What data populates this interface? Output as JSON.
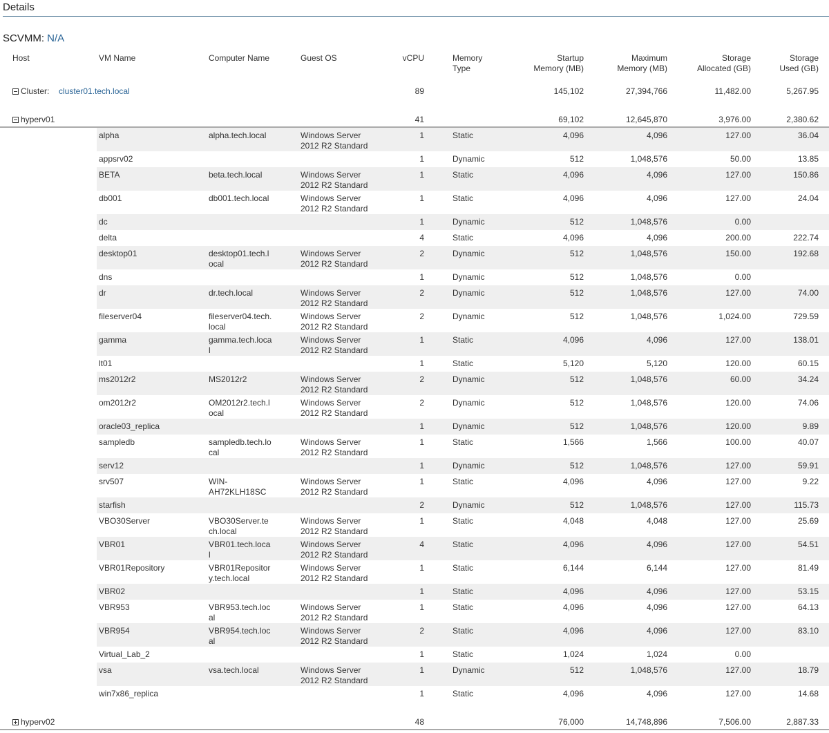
{
  "page": {
    "title": "Details"
  },
  "scvmm": {
    "label": "SCVMM:",
    "value": "N/A"
  },
  "columns": {
    "host": "Host",
    "vm_name": "VM Name",
    "computer_name": "Computer Name",
    "guest_os": "Guest OS",
    "vcpu": "vCPU",
    "memory_type": [
      "Memory",
      "Type"
    ],
    "startup_memory": [
      "Startup",
      "Memory (MB)"
    ],
    "maximum_memory": [
      "Maximum",
      "Memory (MB)"
    ],
    "storage_allocated": [
      "Storage",
      "Allocated (GB)"
    ],
    "storage_used": [
      "Storage",
      "Used (GB)"
    ]
  },
  "cluster": {
    "label": "Cluster:",
    "name": "cluster01.tech.local",
    "expanded": true,
    "vcpu": "89",
    "startup_memory": "145,102",
    "maximum_memory": "27,394,766",
    "storage_allocated": "11,482.00",
    "storage_used": "5,267.95"
  },
  "hosts": [
    {
      "name": "hyperv01",
      "expanded": true,
      "vcpu": "41",
      "startup_memory": "69,102",
      "maximum_memory": "12,645,870",
      "storage_allocated": "3,976.00",
      "storage_used": "2,380.62"
    },
    {
      "name": "hyperv02",
      "expanded": false,
      "vcpu": "48",
      "startup_memory": "76,000",
      "maximum_memory": "14,748,896",
      "storage_allocated": "7,506.00",
      "storage_used": "2,887.33"
    }
  ],
  "vms": [
    [
      "alpha",
      "alpha.tech.local",
      "Windows Server 2012 R2 Standard",
      "1",
      "Static",
      "4,096",
      "4,096",
      "127.00",
      "36.04"
    ],
    [
      "appsrv02",
      "",
      "",
      "1",
      "Dynamic",
      "512",
      "1,048,576",
      "50.00",
      "13.85"
    ],
    [
      "BETA",
      "beta.tech.local",
      "Windows Server 2012 R2 Standard",
      "1",
      "Static",
      "4,096",
      "4,096",
      "127.00",
      "150.86"
    ],
    [
      "db001",
      "db001.tech.local",
      "Windows Server 2012 R2 Standard",
      "1",
      "Static",
      "4,096",
      "4,096",
      "127.00",
      "24.04"
    ],
    [
      "dc",
      "",
      "",
      "1",
      "Dynamic",
      "512",
      "1,048,576",
      "0.00",
      ""
    ],
    [
      "delta",
      "",
      "",
      "4",
      "Static",
      "4,096",
      "4,096",
      "200.00",
      "222.74"
    ],
    [
      "desktop01",
      "desktop01.tech.local",
      "Windows Server 2012 R2 Standard",
      "2",
      "Dynamic",
      "512",
      "1,048,576",
      "150.00",
      "192.68"
    ],
    [
      "dns",
      "",
      "",
      "1",
      "Dynamic",
      "512",
      "1,048,576",
      "0.00",
      ""
    ],
    [
      "dr",
      "dr.tech.local",
      "Windows Server 2012 R2 Standard",
      "2",
      "Dynamic",
      "512",
      "1,048,576",
      "127.00",
      "74.00"
    ],
    [
      "fileserver04",
      "fileserver04.tech.local",
      "Windows Server 2012 R2 Standard",
      "2",
      "Dynamic",
      "512",
      "1,048,576",
      "1,024.00",
      "729.59"
    ],
    [
      "gamma",
      "gamma.tech.local",
      "Windows Server 2012 R2 Standard",
      "1",
      "Static",
      "4,096",
      "4,096",
      "127.00",
      "138.01"
    ],
    [
      "lt01",
      "",
      "",
      "1",
      "Static",
      "5,120",
      "5,120",
      "120.00",
      "60.15"
    ],
    [
      "ms2012r2",
      "MS2012r2",
      "Windows Server 2012 R2 Standard",
      "2",
      "Dynamic",
      "512",
      "1,048,576",
      "60.00",
      "34.24"
    ],
    [
      "om2012r2",
      "OM2012r2.tech.local",
      "Windows Server 2012 R2 Standard",
      "2",
      "Dynamic",
      "512",
      "1,048,576",
      "120.00",
      "74.06"
    ],
    [
      "oracle03_replica",
      "",
      "",
      "1",
      "Dynamic",
      "512",
      "1,048,576",
      "120.00",
      "9.89"
    ],
    [
      "sampledb",
      "sampledb.tech.local",
      "Windows Server 2012 R2 Standard",
      "1",
      "Static",
      "1,566",
      "1,566",
      "100.00",
      "40.07"
    ],
    [
      "serv12",
      "",
      "",
      "1",
      "Dynamic",
      "512",
      "1,048,576",
      "127.00",
      "59.91"
    ],
    [
      "srv507",
      "WIN-AH72KLH18SC",
      "Windows Server 2012 R2 Standard",
      "1",
      "Static",
      "4,096",
      "4,096",
      "127.00",
      "9.22"
    ],
    [
      "starfish",
      "",
      "",
      "2",
      "Dynamic",
      "512",
      "1,048,576",
      "127.00",
      "115.73"
    ],
    [
      "VBO30Server",
      "VBO30Server.tech.local",
      "Windows Server 2012 R2 Standard",
      "1",
      "Static",
      "4,048",
      "4,048",
      "127.00",
      "25.69"
    ],
    [
      "VBR01",
      "VBR01.tech.local",
      "Windows Server 2012 R2 Standard",
      "4",
      "Static",
      "4,096",
      "4,096",
      "127.00",
      "54.51"
    ],
    [
      "VBR01Repository",
      "VBR01Repository.tech.local",
      "Windows Server 2012 R2 Standard",
      "1",
      "Static",
      "6,144",
      "6,144",
      "127.00",
      "81.49"
    ],
    [
      "VBR02",
      "",
      "",
      "1",
      "Static",
      "4,096",
      "4,096",
      "127.00",
      "53.15"
    ],
    [
      "VBR953",
      "VBR953.tech.local",
      "Windows Server 2012 R2 Standard",
      "1",
      "Static",
      "4,096",
      "4,096",
      "127.00",
      "64.13"
    ],
    [
      "VBR954",
      "VBR954.tech.local",
      "Windows Server 2012 R2 Standard",
      "2",
      "Static",
      "4,096",
      "4,096",
      "127.00",
      "83.10"
    ],
    [
      "Virtual_Lab_2",
      "",
      "",
      "1",
      "Static",
      "1,024",
      "1,024",
      "0.00",
      ""
    ],
    [
      "vsa",
      "vsa.tech.local",
      "Windows Server 2012 R2 Standard",
      "1",
      "Dynamic",
      "512",
      "1,048,576",
      "127.00",
      "18.79"
    ],
    [
      "win7x86_replica",
      "",
      "",
      "1",
      "Static",
      "4,096",
      "4,096",
      "127.00",
      "14.68"
    ]
  ],
  "colors": {
    "link": "#2a6496",
    "row_shade": "#efefef",
    "title_rule": "#3d6a8a"
  }
}
